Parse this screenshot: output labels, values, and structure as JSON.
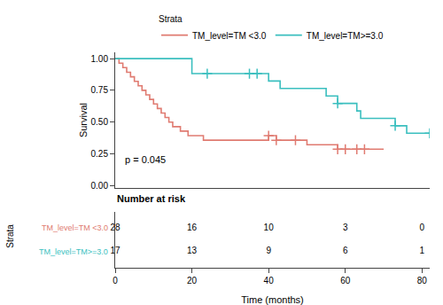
{
  "chart_data": {
    "type": "step",
    "xlabel": "Time (months)",
    "ylabel": "Survival",
    "xlim": [
      0,
      82
    ],
    "ylim": [
      -0.02,
      1.05
    ],
    "xticks": [
      0,
      20,
      40,
      60,
      80
    ],
    "yticks": [
      {
        "value": 0.0,
        "label": "0.00"
      },
      0.25,
      {
        "value": 0.5,
        "label": "0.50"
      },
      0.75,
      {
        "value": 1.0,
        "label": "1.00"
      }
    ],
    "grid": false,
    "legend": "top",
    "legend_title": "Strata",
    "marker": "cross-thin-open",
    "series": [
      {
        "name": "TM_level=TM <3.0",
        "color": "#E07B71",
        "x": [
          0,
          1,
          2,
          3,
          4,
          5,
          6,
          7,
          8,
          9,
          10,
          11,
          12,
          13,
          14,
          15,
          17,
          19,
          21,
          23,
          27,
          35,
          36,
          38,
          40,
          42,
          47,
          50,
          55,
          58,
          60,
          63,
          65,
          70
        ],
        "values": [
          1.0,
          0.964,
          0.929,
          0.893,
          0.857,
          0.821,
          0.786,
          0.75,
          0.714,
          0.679,
          0.643,
          0.607,
          0.571,
          0.536,
          0.5,
          0.464,
          0.429,
          0.393,
          0.393,
          0.357,
          0.357,
          0.357,
          0.357,
          0.357,
          0.393,
          0.357,
          0.357,
          0.321,
          0.321,
          0.286,
          0.286,
          0.286,
          0.286,
          0.286
        ],
        "censor_x": [
          40,
          42,
          47,
          58,
          60,
          63,
          65
        ],
        "censor_values": [
          0.393,
          0.357,
          0.357,
          0.286,
          0.286,
          0.286,
          0.286
        ]
      },
      {
        "name": "TM_level=TM>=3.0",
        "color": "#3BBFBF",
        "x": [
          0,
          10,
          20,
          24,
          35,
          37,
          40,
          43,
          55,
          58,
          62,
          63,
          64,
          65,
          68,
          73,
          76,
          82
        ],
        "values": [
          1.0,
          1.0,
          0.882,
          0.882,
          0.882,
          0.882,
          0.824,
          0.765,
          0.706,
          0.647,
          0.647,
          0.588,
          0.529,
          0.529,
          0.529,
          0.471,
          0.412,
          0.412
        ],
        "censor_x": [
          24,
          35,
          37,
          58,
          73,
          82
        ],
        "censor_values": [
          0.882,
          0.882,
          0.882,
          0.647,
          0.471,
          0.412
        ]
      }
    ],
    "annotations": [
      {
        "text": "p = 0.045",
        "x": 2,
        "y": 0.15
      }
    ],
    "risk_table": {
      "title": "Number at risk",
      "ylabel": "Strata",
      "x": [
        0,
        20,
        40,
        60,
        80
      ],
      "rows": [
        {
          "label": "TM_level=TM <3.0",
          "color": "#E07B71",
          "values": [
            28,
            16,
            10,
            3,
            0
          ]
        },
        {
          "label": "TM_level=TM>=3.0",
          "color": "#3BBFBF",
          "values": [
            17,
            13,
            9,
            6,
            1
          ]
        }
      ]
    }
  }
}
